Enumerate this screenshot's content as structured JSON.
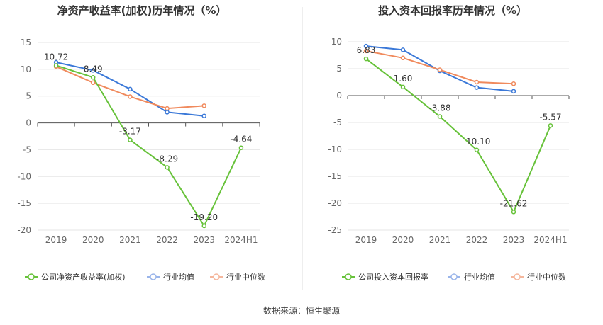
{
  "source_label": "数据来源：恒生聚源",
  "colors": {
    "company": "#67c23a",
    "industry_avg": "#3a78d8",
    "industry_median": "#f08a5d",
    "legend_avg_muted": "#9ab5ea",
    "legend_median_muted": "#f5b79d",
    "grid": "#e6e6e6",
    "axis": "#555555",
    "tick_text": "#666666",
    "title": "#333333"
  },
  "chart_data": [
    {
      "type": "line",
      "title": "净资产收益率(加权)历年情况（%）",
      "categories": [
        "2019",
        "2020",
        "2021",
        "2022",
        "2023",
        "2024H1"
      ],
      "ylim": [
        -20,
        15
      ],
      "yticks": [
        15,
        10,
        5,
        0,
        -5,
        -10,
        -15,
        -20
      ],
      "grid": true,
      "legend_position": "bottom-left",
      "series": [
        {
          "name": "公司净资产收益率(加权)",
          "color_key": "company",
          "values": [
            10.72,
            8.49,
            -3.17,
            -8.29,
            -19.2,
            -4.64
          ],
          "labels": [
            "10.72",
            "8.49",
            "-3.17",
            "-8.29",
            "-19.20",
            "-4.64"
          ]
        },
        {
          "name": "行业均值",
          "color_key": "industry_avg",
          "values": [
            11.3,
            9.8,
            6.3,
            2.0,
            1.3,
            null
          ]
        },
        {
          "name": "行业中位数",
          "color_key": "industry_median",
          "values": [
            10.5,
            7.5,
            4.9,
            2.7,
            3.2,
            null
          ]
        }
      ]
    },
    {
      "type": "line",
      "title": "投入资本回报率历年情况（%）",
      "categories": [
        "2019",
        "2020",
        "2021",
        "2022",
        "2023",
        "2024H1"
      ],
      "ylim": [
        -25,
        10
      ],
      "yticks": [
        10,
        5,
        0,
        -5,
        -10,
        -15,
        -20,
        -25
      ],
      "grid": true,
      "legend_position": "bottom-left",
      "series": [
        {
          "name": "公司投入资本回报率",
          "color_key": "company",
          "values": [
            6.83,
            1.6,
            -3.88,
            -10.1,
            -21.62,
            -5.57
          ],
          "labels": [
            "6.83",
            "1.60",
            "-3.88",
            "-10.10",
            "-21.62",
            "-5.57"
          ]
        },
        {
          "name": "行业均值",
          "color_key": "industry_avg",
          "values": [
            9.2,
            8.5,
            4.6,
            1.5,
            0.8,
            null
          ]
        },
        {
          "name": "行业中位数",
          "color_key": "industry_median",
          "values": [
            8.3,
            7.0,
            4.8,
            2.5,
            2.2,
            null
          ]
        }
      ]
    }
  ]
}
